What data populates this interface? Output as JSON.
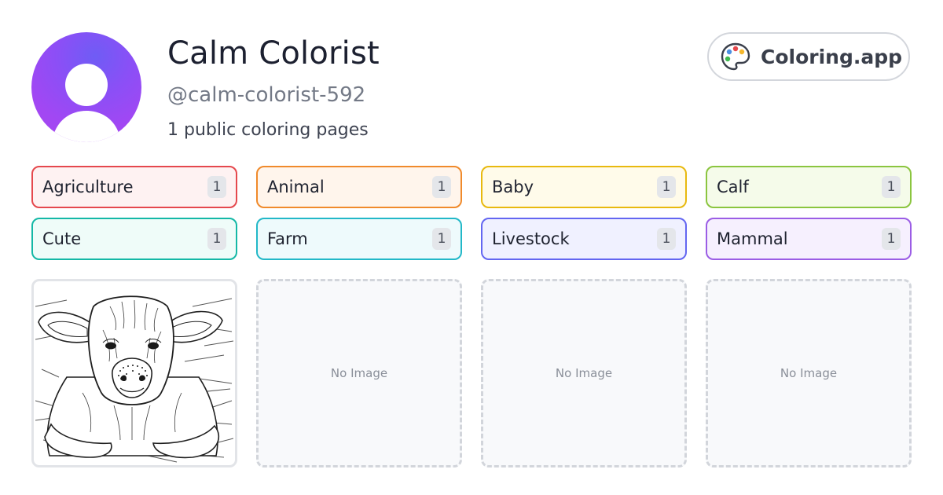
{
  "profile": {
    "name": "Calm Colorist",
    "handle": "@calm-colorist-592",
    "page_count_text": "1 public coloring pages"
  },
  "brand": {
    "name": "Coloring.app",
    "icon": "palette-icon"
  },
  "tags": [
    {
      "label": "Agriculture",
      "count": "1",
      "border": "#e5484d",
      "fill": "#fef2f2"
    },
    {
      "label": "Animal",
      "count": "1",
      "border": "#f08a2b",
      "fill": "#fff5ec"
    },
    {
      "label": "Baby",
      "count": "1",
      "border": "#e8b90f",
      "fill": "#fffbea"
    },
    {
      "label": "Calf",
      "count": "1",
      "border": "#8bc53f",
      "fill": "#f5fbea"
    },
    {
      "label": "Cute",
      "count": "1",
      "border": "#14b8a6",
      "fill": "#effcf9"
    },
    {
      "label": "Farm",
      "count": "1",
      "border": "#22b8c8",
      "fill": "#eefafc"
    },
    {
      "label": "Livestock",
      "count": "1",
      "border": "#6366f1",
      "fill": "#f0f1ff"
    },
    {
      "label": "Mammal",
      "count": "1",
      "border": "#9b5de5",
      "fill": "#f6f0fe"
    }
  ],
  "gallery": [
    {
      "type": "image",
      "subject": "calf-lying-in-straw-line-art"
    },
    {
      "type": "empty",
      "text": "No Image"
    },
    {
      "type": "empty",
      "text": "No Image"
    },
    {
      "type": "empty",
      "text": "No Image"
    }
  ]
}
